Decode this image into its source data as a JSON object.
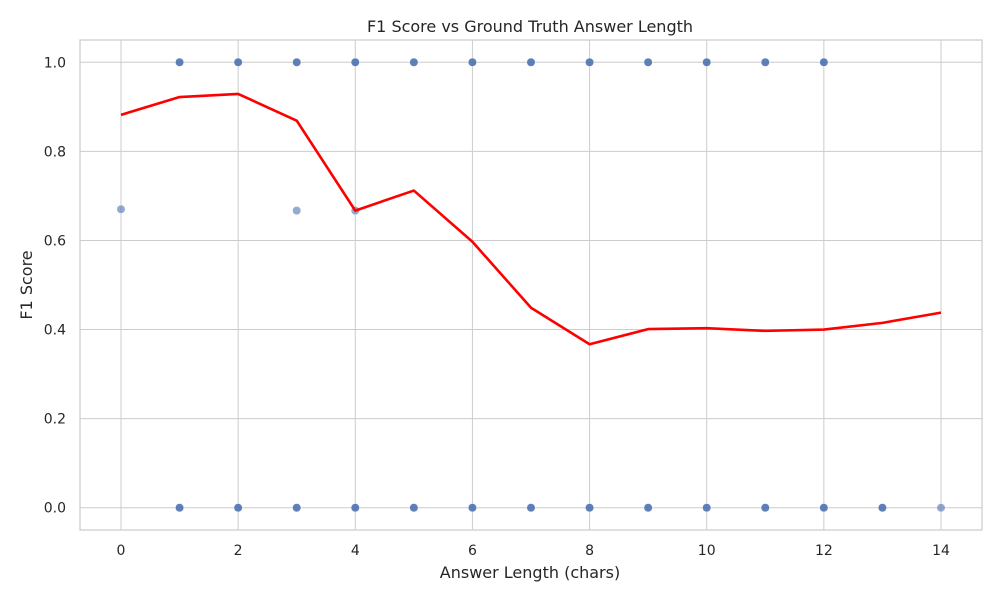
{
  "chart_data": {
    "type": "scatter",
    "title": "F1 Score vs Ground Truth Answer Length",
    "xlabel": "Answer Length (chars)",
    "ylabel": "F1 Score",
    "xlim": [
      -0.7,
      14.7
    ],
    "ylim": [
      -0.05,
      1.05
    ],
    "xticks": [
      0,
      2,
      4,
      6,
      8,
      10,
      12,
      14
    ],
    "yticks": [
      0.0,
      0.2,
      0.4,
      0.6,
      0.8,
      1.0
    ],
    "xtick_labels": [
      "0",
      "2",
      "4",
      "6",
      "8",
      "10",
      "12",
      "14"
    ],
    "ytick_labels": [
      "0.0",
      "0.2",
      "0.4",
      "0.6",
      "0.8",
      "1.0"
    ],
    "grid": true,
    "colors": {
      "points": "#4c72b0",
      "trend": "#ff0000",
      "grid": "#cccccc",
      "spine": "#cccccc"
    },
    "series": [
      {
        "type": "scatter",
        "points": [
          {
            "x": 0,
            "y": 0.67,
            "alpha": 0.6
          },
          {
            "x": 1,
            "y": 1.0,
            "alpha": 0.9
          },
          {
            "x": 2,
            "y": 1.0,
            "alpha": 0.9
          },
          {
            "x": 3,
            "y": 1.0,
            "alpha": 0.9
          },
          {
            "x": 3,
            "y": 0.667,
            "alpha": 0.6
          },
          {
            "x": 4,
            "y": 1.0,
            "alpha": 0.9
          },
          {
            "x": 4,
            "y": 0.667,
            "alpha": 0.6
          },
          {
            "x": 5,
            "y": 1.0,
            "alpha": 0.9
          },
          {
            "x": 6,
            "y": 1.0,
            "alpha": 0.9
          },
          {
            "x": 7,
            "y": 1.0,
            "alpha": 0.9
          },
          {
            "x": 8,
            "y": 1.0,
            "alpha": 0.9
          },
          {
            "x": 9,
            "y": 1.0,
            "alpha": 0.9
          },
          {
            "x": 10,
            "y": 1.0,
            "alpha": 0.9
          },
          {
            "x": 11,
            "y": 1.0,
            "alpha": 0.9
          },
          {
            "x": 12,
            "y": 1.0,
            "alpha": 0.9
          },
          {
            "x": 1,
            "y": 0.0,
            "alpha": 0.9
          },
          {
            "x": 2,
            "y": 0.0,
            "alpha": 0.9
          },
          {
            "x": 3,
            "y": 0.0,
            "alpha": 0.9
          },
          {
            "x": 4,
            "y": 0.0,
            "alpha": 0.9
          },
          {
            "x": 5,
            "y": 0.0,
            "alpha": 0.9
          },
          {
            "x": 6,
            "y": 0.0,
            "alpha": 0.9
          },
          {
            "x": 7,
            "y": 0.0,
            "alpha": 0.9
          },
          {
            "x": 8,
            "y": 0.0,
            "alpha": 0.9
          },
          {
            "x": 9,
            "y": 0.0,
            "alpha": 0.9
          },
          {
            "x": 10,
            "y": 0.0,
            "alpha": 0.9
          },
          {
            "x": 11,
            "y": 0.0,
            "alpha": 0.9
          },
          {
            "x": 12,
            "y": 0.0,
            "alpha": 0.9
          },
          {
            "x": 13,
            "y": 0.0,
            "alpha": 0.9
          },
          {
            "x": 14,
            "y": 0.0,
            "alpha": 0.6
          }
        ]
      },
      {
        "type": "line",
        "x": [
          0,
          1,
          2,
          3,
          4,
          5,
          6,
          7,
          8,
          9,
          10,
          11,
          12,
          13,
          14
        ],
        "y": [
          0.882,
          0.922,
          0.929,
          0.869,
          0.667,
          0.712,
          0.597,
          0.449,
          0.367,
          0.401,
          0.403,
          0.397,
          0.4,
          0.415,
          0.438
        ]
      }
    ]
  }
}
